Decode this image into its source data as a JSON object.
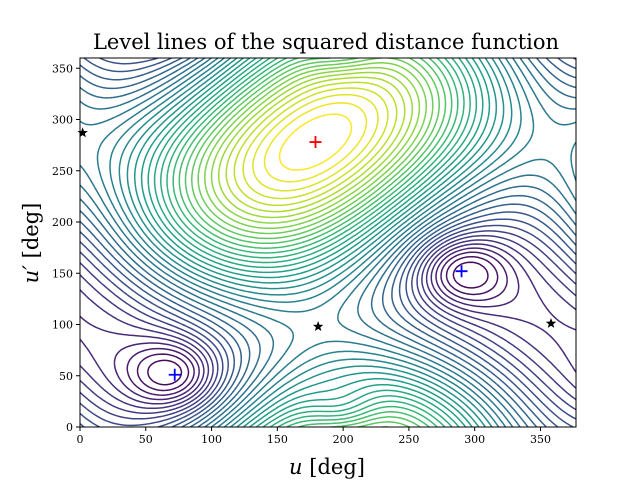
{
  "chart_data": {
    "type": "contour",
    "title": "Level lines of the squared distance function",
    "xlabel": "u [deg]",
    "ylabel": "u′ [deg]",
    "xlim": [
      0,
      377
    ],
    "ylim": [
      0,
      360
    ],
    "xticks": [
      0,
      50,
      100,
      150,
      200,
      250,
      300,
      350
    ],
    "yticks": [
      0,
      50,
      100,
      150,
      200,
      250,
      300,
      350
    ],
    "grid": false,
    "colormap": "viridis",
    "num_levels": 40,
    "maximum": {
      "x": 179,
      "y": 278,
      "color": "#ff0000"
    },
    "local_minima": [
      {
        "x": 72,
        "y": 51,
        "color": "#0000ff"
      },
      {
        "x": 290,
        "y": 152,
        "color": "#0000ff"
      }
    ],
    "saddle_points": [
      {
        "x": 2,
        "y": 287,
        "color": "#000000"
      },
      {
        "x": 181,
        "y": 98,
        "color": "#000000"
      },
      {
        "x": 358,
        "y": 101,
        "color": "#000000"
      }
    ]
  }
}
